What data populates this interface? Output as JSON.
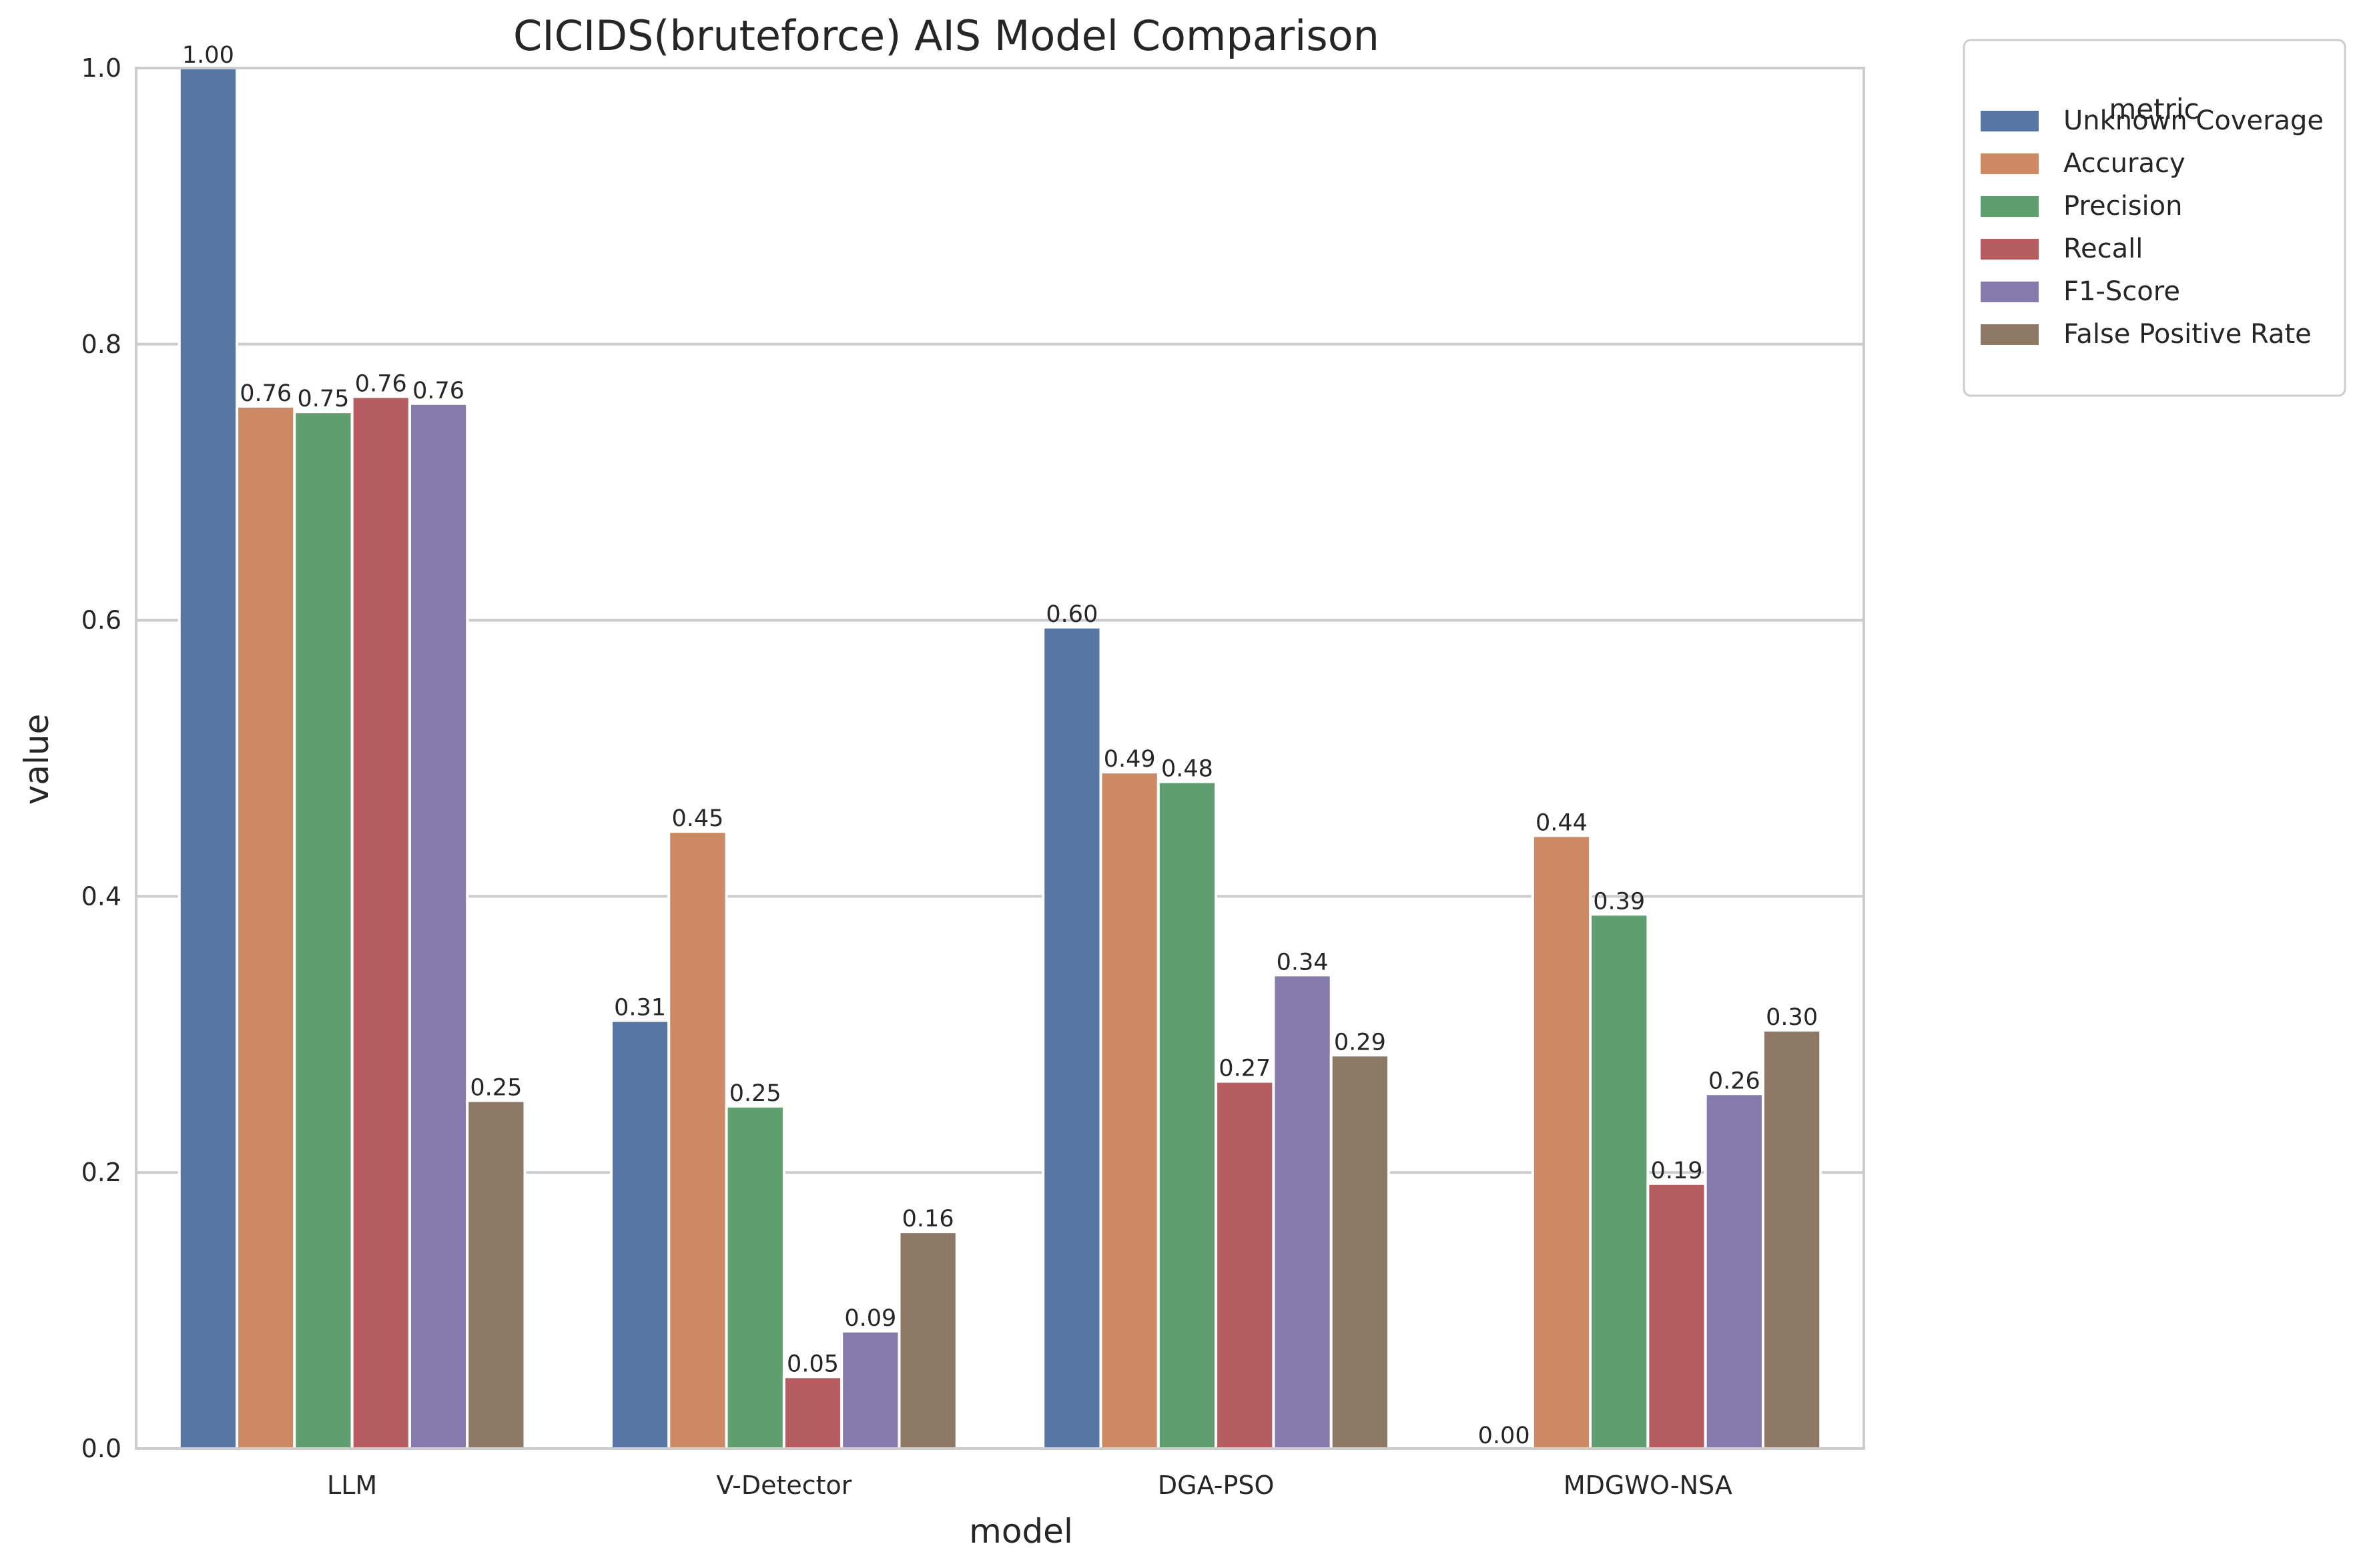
{
  "chart_data": {
    "type": "bar",
    "title": "CICIDS(bruteforce) AIS Model Comparison",
    "xlabel": "model",
    "ylabel": "value",
    "ylim": [
      0,
      1.0
    ],
    "yticks": [
      0.0,
      0.2,
      0.4,
      0.6,
      0.8,
      1.0
    ],
    "ytick_labels": [
      "0.0",
      "0.2",
      "0.4",
      "0.6",
      "0.8",
      "1.0"
    ],
    "grid": true,
    "legend": {
      "title": "metric",
      "placement": "outside-top-right"
    },
    "categories": [
      "LLM",
      "V-Detector",
      "DGA-PSO",
      "MDGWO-NSA"
    ],
    "series": [
      {
        "name": "Unknown Coverage",
        "color": "#5875a4",
        "values": [
          1.0,
          0.31,
          0.595,
          0.0
        ],
        "labels": [
          "1.00",
          "0.31",
          "0.60",
          "0.00"
        ]
      },
      {
        "name": "Accuracy",
        "color": "#cc8963",
        "values": [
          0.755,
          0.447,
          0.49,
          0.444
        ],
        "labels": [
          "0.76",
          "0.45",
          "0.49",
          "0.44"
        ]
      },
      {
        "name": "Precision",
        "color": "#5f9e6e",
        "values": [
          0.751,
          0.248,
          0.483,
          0.387
        ],
        "labels": [
          "0.75",
          "0.25",
          "0.48",
          "0.39"
        ]
      },
      {
        "name": "Recall",
        "color": "#b55d60",
        "values": [
          0.762,
          0.052,
          0.266,
          0.192
        ],
        "labels": [
          "0.76",
          "0.05",
          "0.27",
          "0.19"
        ]
      },
      {
        "name": "F1-Score",
        "color": "#857aab",
        "values": [
          0.757,
          0.085,
          0.343,
          0.257
        ],
        "labels": [
          "0.76",
          "0.09",
          "0.34",
          "0.26"
        ]
      },
      {
        "name": "False Positive Rate",
        "color": "#8d7866",
        "values": [
          0.252,
          0.157,
          0.285,
          0.303
        ],
        "labels": [
          "0.25",
          "0.16",
          "0.29",
          "0.30"
        ]
      }
    ]
  }
}
